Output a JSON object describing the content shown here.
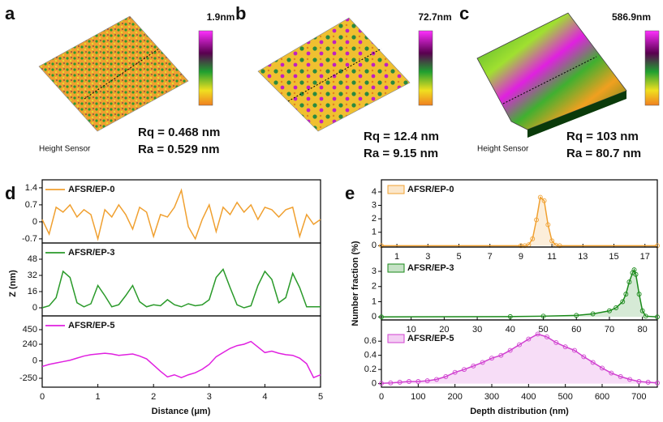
{
  "images": [
    {
      "label": "a",
      "scale": "1.9nm",
      "rq": "Rq = 0.468 nm",
      "ra": "Ra = 0.529 nm",
      "sensor": "Height Sensor"
    },
    {
      "label": "b",
      "scale": "72.7nm",
      "rq": "Rq = 12.4 nm",
      "ra": "Ra = 9.15 nm"
    },
    {
      "label": "c",
      "scale": "586.9nm",
      "rq": "Rq = 103 nm",
      "ra": "Ra = 80.7 nm",
      "sensor": "Height Sensor"
    }
  ],
  "chart_data": [
    {
      "type": "line",
      "panel": "d",
      "legend": "upper left",
      "xlim": [
        0,
        5
      ],
      "ylim": [
        -0.87,
        1.73
      ],
      "yticks": [
        -0.7,
        0,
        0.7,
        1.4
      ],
      "x": [
        0,
        0.125,
        0.25,
        0.375,
        0.5,
        0.625,
        0.75,
        0.875,
        1,
        1.125,
        1.25,
        1.375,
        1.5,
        1.625,
        1.75,
        1.875,
        2,
        2.125,
        2.25,
        2.375,
        2.5,
        2.625,
        2.75,
        2.875,
        3,
        3.125,
        3.25,
        3.375,
        3.5,
        3.625,
        3.75,
        3.875,
        4,
        4.125,
        4.25,
        4.375,
        4.5,
        4.625,
        4.75,
        4.875,
        5
      ],
      "series": [
        {
          "name": "AFSR/EP-0",
          "color": "#f0a030",
          "values": [
            0.1,
            -0.5,
            0.6,
            0.4,
            0.7,
            0.2,
            0.5,
            0.3,
            -0.7,
            0.5,
            0.2,
            0.7,
            0.3,
            -0.3,
            0.6,
            0.4,
            -0.6,
            0.3,
            0.2,
            0.6,
            1.3,
            -0.2,
            -0.7,
            0.1,
            0.7,
            -0.4,
            0.6,
            0.3,
            0.8,
            0.4,
            0.7,
            0.1,
            0.6,
            0.5,
            0.2,
            0.5,
            0.6,
            -0.6,
            0.3,
            -0.1,
            0.1
          ]
        }
      ]
    },
    {
      "type": "line",
      "legend": "upper left",
      "y_label": "Z (nm)",
      "xlim": [
        0,
        5
      ],
      "ylim": [
        -8,
        64
      ],
      "yticks": [
        0,
        16,
        32,
        48
      ],
      "x": [
        0,
        0.125,
        0.25,
        0.375,
        0.5,
        0.625,
        0.75,
        0.875,
        1,
        1.125,
        1.25,
        1.375,
        1.5,
        1.625,
        1.75,
        1.875,
        2,
        2.125,
        2.25,
        2.375,
        2.5,
        2.625,
        2.75,
        2.875,
        3,
        3.125,
        3.25,
        3.375,
        3.5,
        3.625,
        3.75,
        3.875,
        4,
        4.125,
        4.25,
        4.375,
        4.5,
        4.625,
        4.75,
        4.875,
        5
      ],
      "series": [
        {
          "name": "AFSR/EP-3",
          "color": "#2a9a2a",
          "values": [
            0,
            2,
            10,
            36,
            30,
            5,
            1,
            4,
            22,
            12,
            1,
            3,
            12,
            22,
            6,
            1,
            3,
            2,
            8,
            3,
            1,
            4,
            2,
            3,
            8,
            30,
            38,
            20,
            3,
            0,
            2,
            22,
            36,
            28,
            5,
            10,
            34,
            20,
            1,
            1,
            1
          ]
        }
      ]
    },
    {
      "type": "line",
      "legend": "upper left",
      "x_label": "Distance (μm)",
      "xlim": [
        0,
        5
      ],
      "xticks": [
        0,
        1,
        2,
        3,
        4,
        5
      ],
      "ylim": [
        -378,
        648
      ],
      "yticks": [
        -250,
        0,
        240,
        450
      ],
      "x": [
        0,
        0.125,
        0.25,
        0.375,
        0.5,
        0.625,
        0.75,
        0.875,
        1,
        1.125,
        1.25,
        1.375,
        1.5,
        1.625,
        1.75,
        1.875,
        2,
        2.125,
        2.25,
        2.375,
        2.5,
        2.625,
        2.75,
        2.875,
        3,
        3.125,
        3.25,
        3.375,
        3.5,
        3.625,
        3.75,
        3.875,
        4,
        4.125,
        4.25,
        4.375,
        4.5,
        4.625,
        4.75,
        4.875,
        5
      ],
      "series": [
        {
          "name": "AFSR/EP-5",
          "color": "#e020e0",
          "values": [
            -80,
            -50,
            -30,
            -10,
            10,
            40,
            70,
            90,
            100,
            110,
            100,
            80,
            90,
            100,
            70,
            30,
            -60,
            -150,
            -230,
            -200,
            -240,
            -200,
            -170,
            -120,
            -50,
            60,
            120,
            180,
            220,
            240,
            280,
            200,
            120,
            140,
            110,
            90,
            80,
            40,
            -40,
            -240,
            -200
          ]
        }
      ]
    },
    {
      "type": "line",
      "panel": "e",
      "legend": "upper left",
      "markers": true,
      "fill": true,
      "xlim": [
        0,
        17.8
      ],
      "xticks": [
        1,
        3,
        5,
        7,
        9,
        11,
        13,
        15,
        17
      ],
      "ylim": [
        -0.1,
        4.9
      ],
      "yticks": [
        0,
        1,
        2,
        3,
        4
      ],
      "x": [
        0,
        9,
        9.25,
        9.5,
        9.75,
        10,
        10.25,
        10.5,
        10.75,
        11,
        11.25,
        11.5,
        17.8
      ],
      "series": [
        {
          "name": "AFSR/EP-0",
          "color": "#f0a030",
          "values": [
            0,
            0,
            0,
            0.07,
            0.51,
            1.92,
            3.6,
            3.35,
            1.56,
            0.36,
            0.04,
            0,
            0
          ]
        }
      ]
    },
    {
      "type": "line",
      "legend": "upper left",
      "markers": true,
      "fill": true,
      "y_label": "Number fraction (%)",
      "xlim": [
        1,
        84.5
      ],
      "xticks": [
        10,
        20,
        30,
        40,
        50,
        60,
        70,
        80
      ],
      "ylim": [
        -0.2,
        4.6
      ],
      "yticks": [
        0,
        1,
        2,
        3
      ],
      "x": [
        1,
        40,
        50,
        60,
        65,
        70,
        72,
        74,
        75,
        76,
        77,
        77.5,
        78,
        79,
        80,
        81,
        84.5
      ],
      "series": [
        {
          "name": "AFSR/EP-3",
          "color": "#1a8a1a",
          "values": [
            0,
            0.02,
            0.05,
            0.1,
            0.2,
            0.4,
            0.6,
            1.0,
            1.5,
            2.3,
            2.9,
            3.1,
            2.8,
            1.5,
            0.4,
            0.05,
            0
          ]
        }
      ]
    },
    {
      "type": "line",
      "legend": "upper left",
      "markers": true,
      "fill": true,
      "x_label": "Depth distribution (nm)",
      "xlim": [
        0,
        750
      ],
      "xticks": [
        0,
        100,
        200,
        300,
        400,
        500,
        600,
        700
      ],
      "ylim": [
        -0.05,
        0.9
      ],
      "yticks": [
        0,
        0.2,
        0.4,
        0.6
      ],
      "x": [
        0,
        25,
        50,
        75,
        100,
        125,
        150,
        175,
        200,
        225,
        250,
        275,
        300,
        325,
        350,
        375,
        400,
        425,
        450,
        475,
        500,
        525,
        550,
        575,
        600,
        625,
        650,
        675,
        700,
        725,
        750
      ],
      "series": [
        {
          "name": "AFSR/EP-5",
          "color": "#d040d0",
          "values": [
            0.005,
            0.01,
            0.02,
            0.03,
            0.03,
            0.04,
            0.06,
            0.1,
            0.16,
            0.2,
            0.25,
            0.3,
            0.36,
            0.4,
            0.47,
            0.55,
            0.63,
            0.7,
            0.66,
            0.58,
            0.52,
            0.47,
            0.38,
            0.3,
            0.22,
            0.15,
            0.1,
            0.06,
            0.03,
            0.02,
            0.01
          ]
        }
      ]
    }
  ]
}
